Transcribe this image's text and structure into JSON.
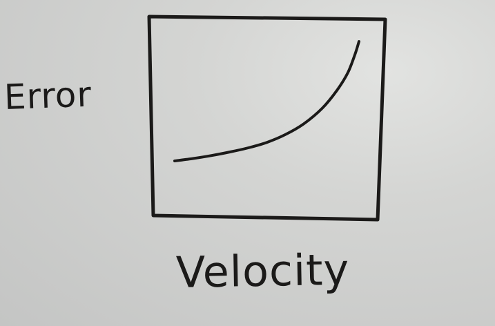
{
  "chart_data": {
    "type": "line",
    "title": "",
    "xlabel": "Velocity",
    "ylabel": "Error",
    "series": [
      {
        "values": [
          {
            "x": 0.0,
            "y": 0.0
          },
          {
            "x": 0.1,
            "y": 0.02
          },
          {
            "x": 0.2,
            "y": 0.045
          },
          {
            "x": 0.3,
            "y": 0.075
          },
          {
            "x": 0.4,
            "y": 0.11
          },
          {
            "x": 0.5,
            "y": 0.155
          },
          {
            "x": 0.6,
            "y": 0.22
          },
          {
            "x": 0.7,
            "y": 0.31
          },
          {
            "x": 0.8,
            "y": 0.44
          },
          {
            "x": 0.88,
            "y": 0.59
          },
          {
            "x": 0.94,
            "y": 0.74
          },
          {
            "x": 0.98,
            "y": 0.9
          },
          {
            "x": 1.0,
            "y": 1.0
          }
        ]
      }
    ],
    "xlim": [
      0,
      1
    ],
    "ylim": [
      0,
      1
    ],
    "grid": false,
    "ticks": false,
    "colors": {
      "ink": "#1b1a19",
      "board": "#d2d3d1"
    }
  }
}
